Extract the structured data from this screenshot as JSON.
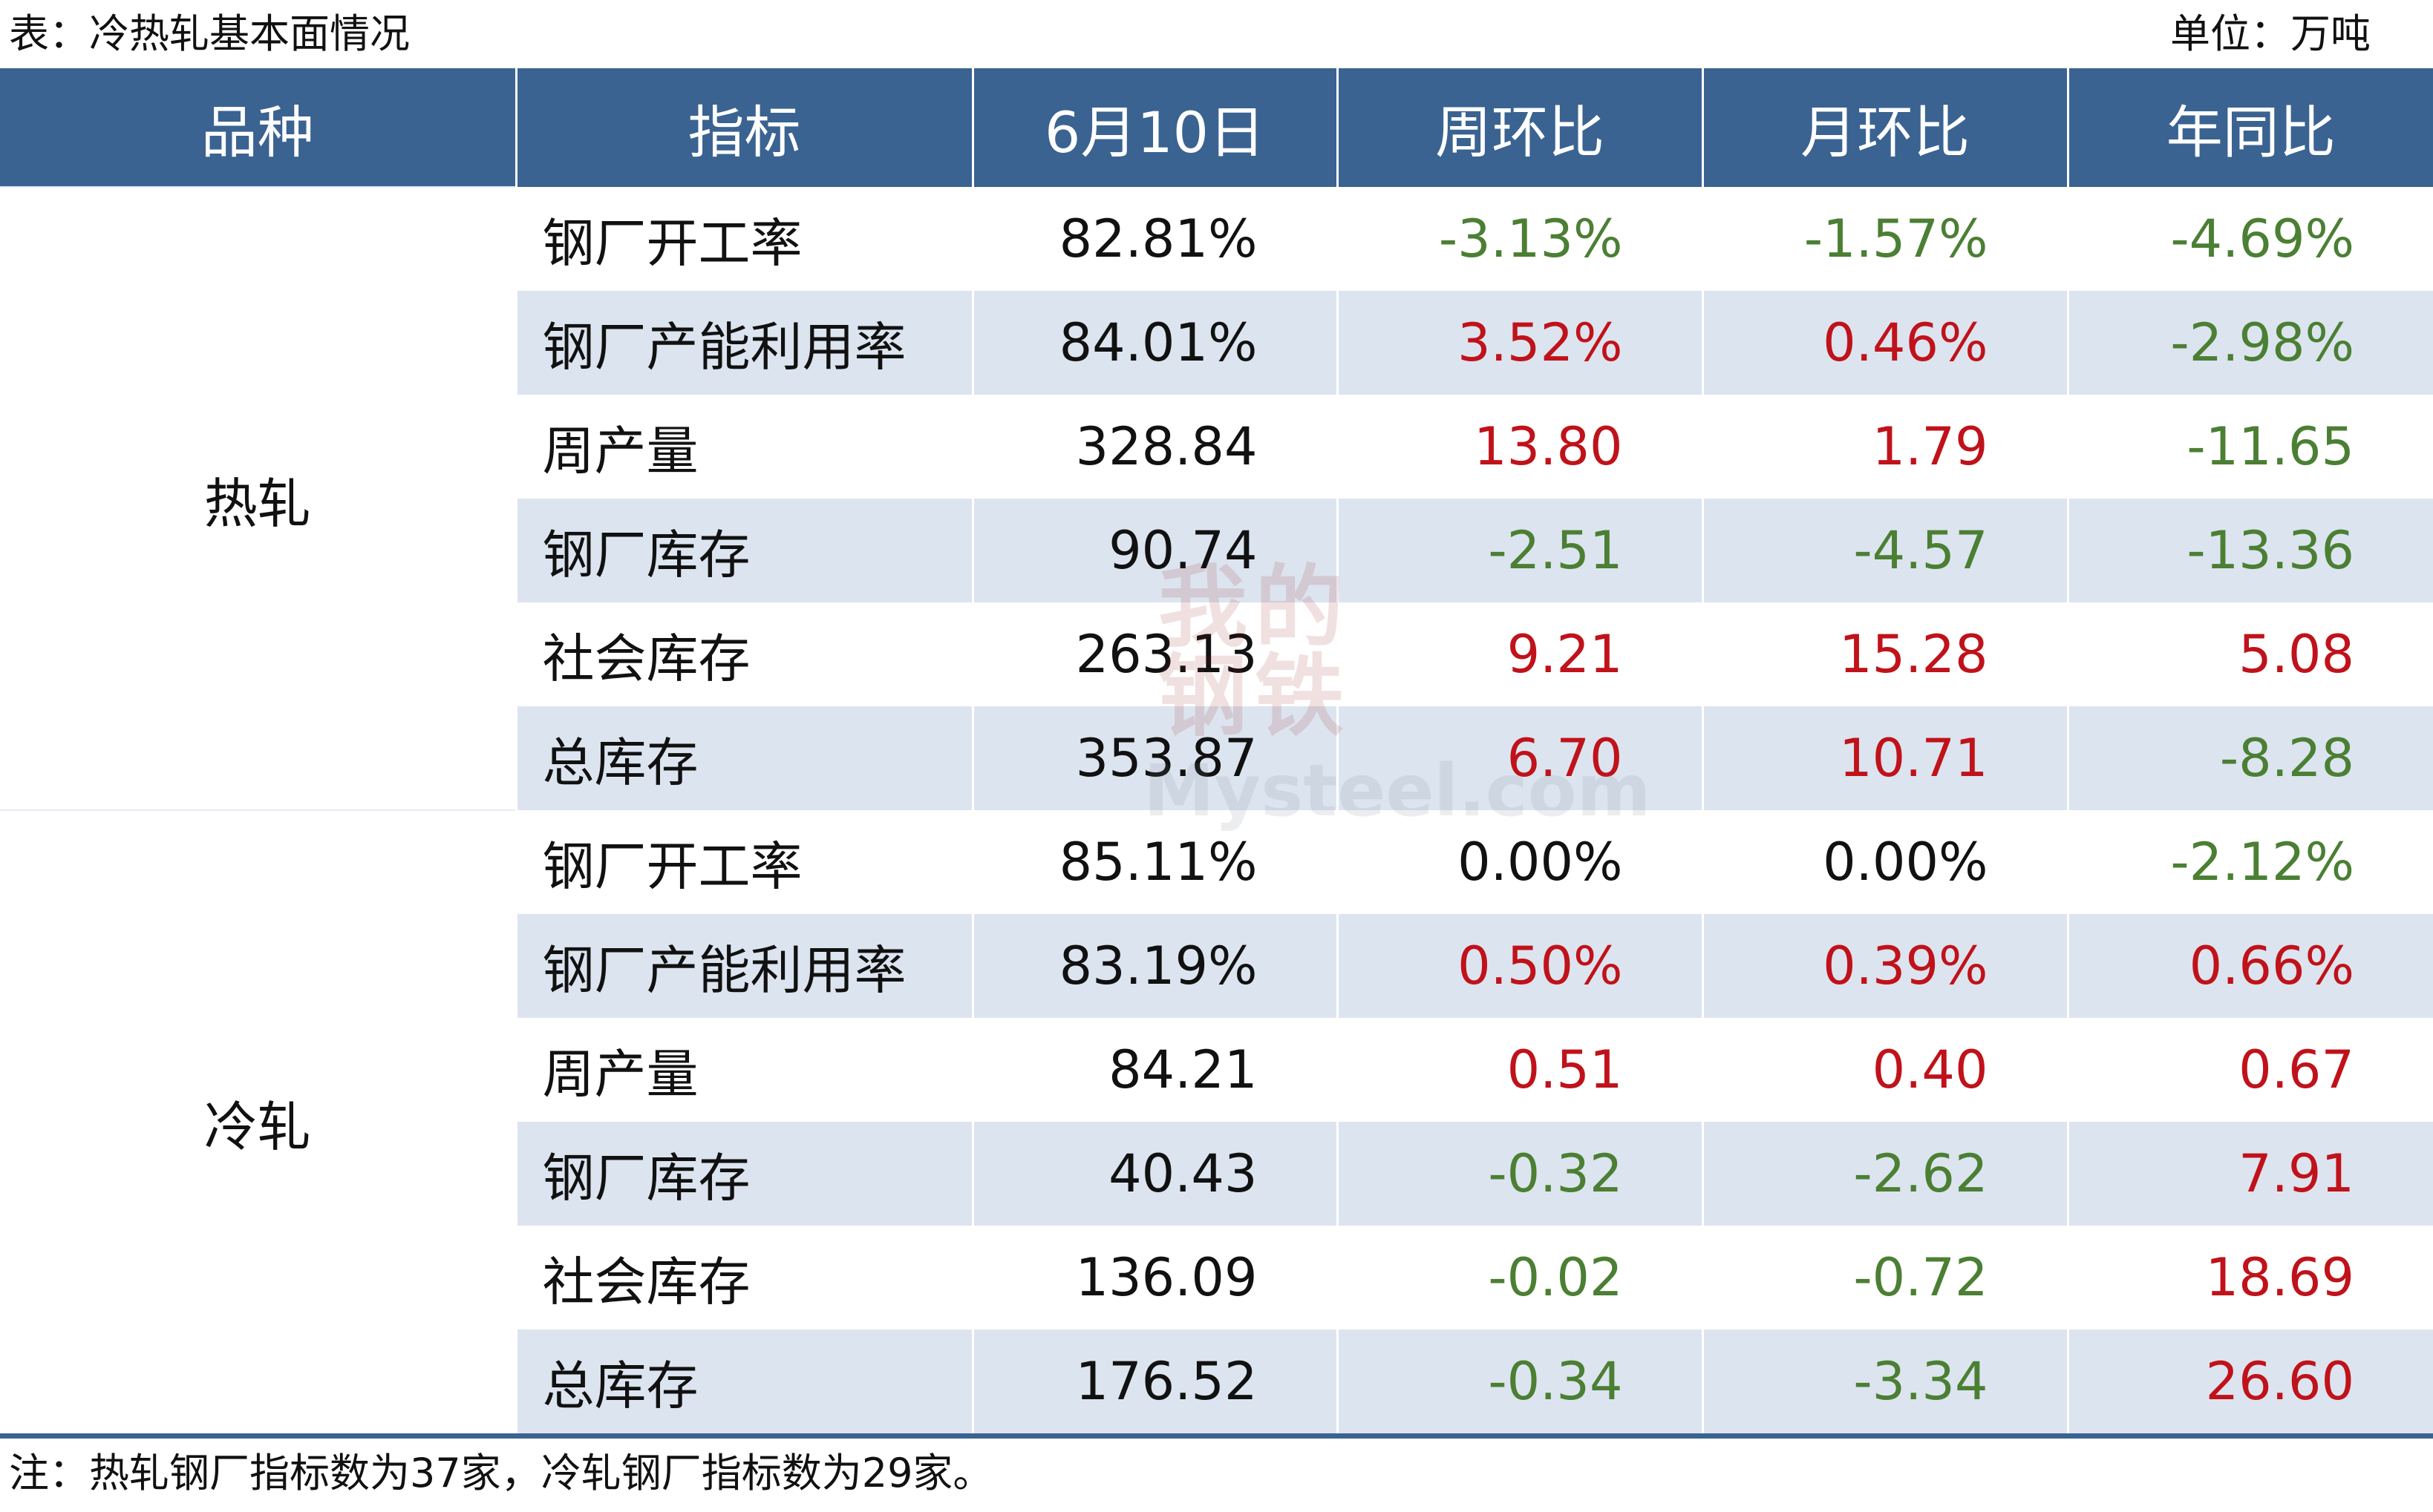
{
  "header": {
    "caption": "表：冷热轧基本面情况",
    "unit": "单位：万吨"
  },
  "columns": [
    "品种",
    "指标",
    "6月10日",
    "周环比",
    "月环比",
    "年同比"
  ],
  "groups": [
    {
      "name": "热轧",
      "rows": [
        {
          "indicator": "钢厂开工率",
          "value": "82.81%",
          "wow": "-3.13%",
          "mom": "-1.57%",
          "yoy": "-4.69%"
        },
        {
          "indicator": "钢厂产能利用率",
          "value": "84.01%",
          "wow": "3.52%",
          "mom": "0.46%",
          "yoy": "-2.98%"
        },
        {
          "indicator": "周产量",
          "value": "328.84",
          "wow": "13.80",
          "mom": "1.79",
          "yoy": "-11.65"
        },
        {
          "indicator": "钢厂库存",
          "value": "90.74",
          "wow": "-2.51",
          "mom": "-4.57",
          "yoy": "-13.36"
        },
        {
          "indicator": "社会库存",
          "value": "263.13",
          "wow": "9.21",
          "mom": "15.28",
          "yoy": "5.08"
        },
        {
          "indicator": "总库存",
          "value": "353.87",
          "wow": "6.70",
          "mom": "10.71",
          "yoy": "-8.28"
        }
      ]
    },
    {
      "name": "冷轧",
      "rows": [
        {
          "indicator": "钢厂开工率",
          "value": "85.11%",
          "wow": "0.00%",
          "mom": "0.00%",
          "yoy": "-2.12%"
        },
        {
          "indicator": "钢厂产能利用率",
          "value": "83.19%",
          "wow": "0.50%",
          "mom": "0.39%",
          "yoy": "0.66%"
        },
        {
          "indicator": "周产量",
          "value": "84.21",
          "wow": "0.51",
          "mom": "0.40",
          "yoy": "0.67"
        },
        {
          "indicator": "钢厂库存",
          "value": "40.43",
          "wow": "-0.32",
          "mom": "-2.62",
          "yoy": "7.91"
        },
        {
          "indicator": "社会库存",
          "value": "136.09",
          "wow": "-0.02",
          "mom": "-0.72",
          "yoy": "18.69"
        },
        {
          "indicator": "总库存",
          "value": "176.52",
          "wow": "-0.34",
          "mom": "-3.34",
          "yoy": "26.60"
        }
      ]
    }
  ],
  "note": "注：热轧钢厂指标数为37家，冷轧钢厂指标数为29家。",
  "watermark": {
    "chinese": [
      "我",
      "的",
      "钢",
      "铁"
    ],
    "english": "Mysteel.com"
  },
  "colors": {
    "header_bg": "#3a6391",
    "alt_row_bg": "#dce4ef",
    "positive": "#c0121a",
    "negative": "#4b7f33"
  }
}
